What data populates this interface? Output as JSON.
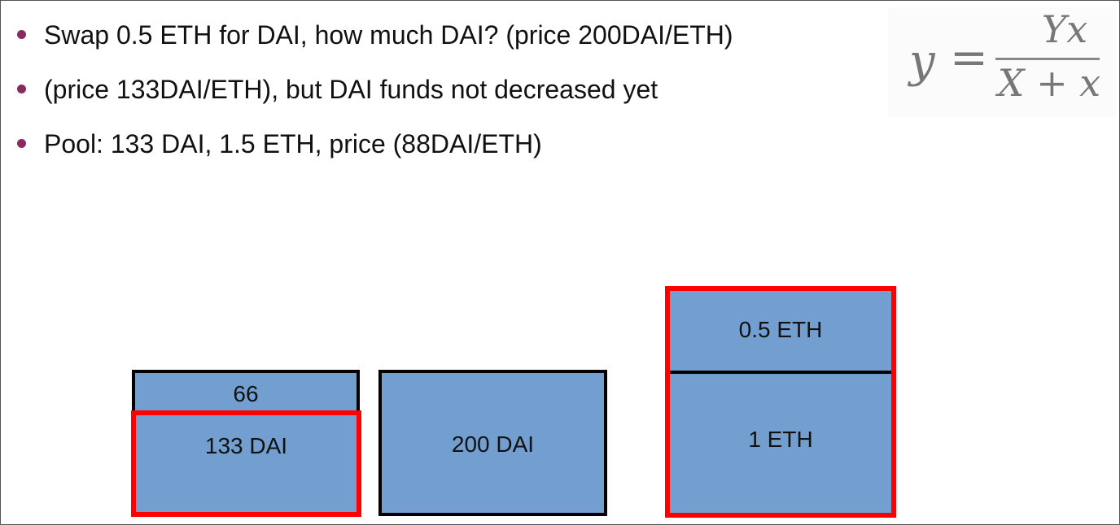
{
  "bullets": [
    "Swap 0.5 ETH for DAI, how much DAI? (price 200DAI/ETH)",
    "(price 133DAI/ETH), but DAI funds not decreased yet",
    "Pool: 133 DAI, 1.5 ETH, price (88DAI/ETH)"
  ],
  "formula": {
    "lhs": "y",
    "equals": "=",
    "numerator": "Yx",
    "denominator": "X + x"
  },
  "boxes": {
    "dai_extra": "66",
    "dai_pool": "133 DAI",
    "dai_original": "200 DAI",
    "eth_added": "0.5 ETH",
    "eth_pool": "1 ETH"
  },
  "colors": {
    "box_fill": "#729fcf",
    "highlight_border": "#ff0000",
    "normal_border": "#000000",
    "bullet_dot": "#8a2a63"
  }
}
